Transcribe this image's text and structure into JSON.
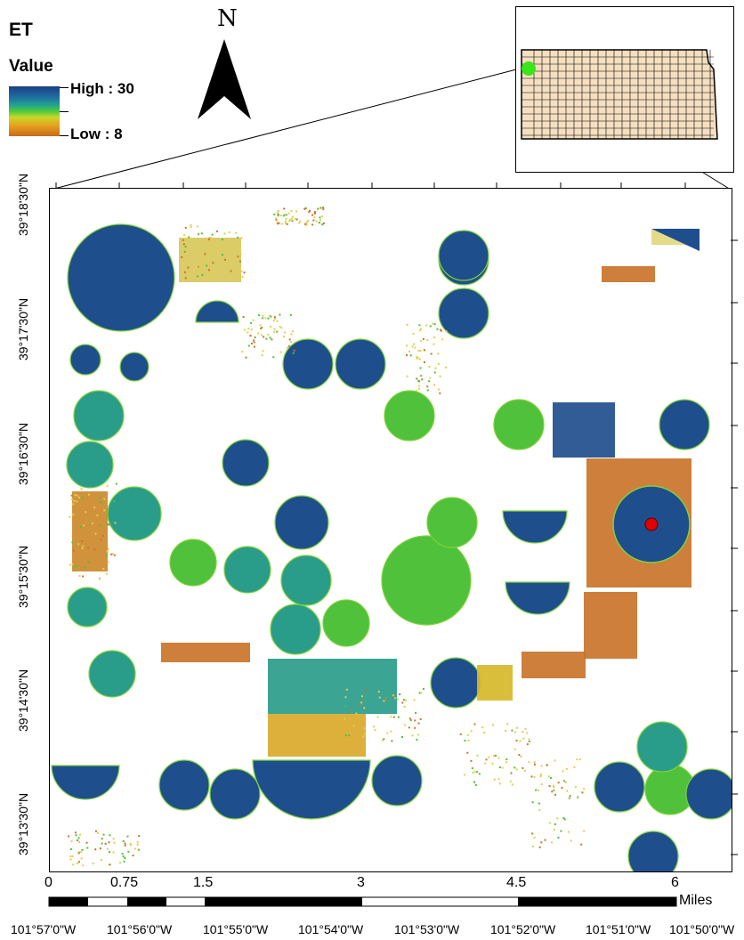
{
  "legend": {
    "title": "ET",
    "subtitle": "Value",
    "high_label": "High : 30",
    "low_label": "Low : 8",
    "high_value": 30,
    "low_value": 8,
    "ramp_colors": [
      "#1b3f86",
      "#1f6f9f",
      "#23a48e",
      "#4ecb3a",
      "#c9d82a",
      "#e6a21f",
      "#c76a1c"
    ]
  },
  "north_arrow": {
    "letter": "N",
    "icon": "north-arrow-icon"
  },
  "inset": {
    "description_colors": {
      "fill": "#f5dfc0",
      "highlight": "#39e619",
      "outline": "#000000"
    }
  },
  "scale_bar": {
    "labels": [
      "0",
      "0.75",
      "1.5",
      "3",
      "4.5",
      "6"
    ],
    "unit": "Miles"
  },
  "latitude_labels": [
    "39°18'30\"N",
    "39°17'30\"N",
    "39°16'30\"N",
    "39°15'30\"N",
    "39°14'30\"N",
    "39°13'30\"N"
  ],
  "longitude_labels": [
    "101°57'0\"W",
    "101°56'0\"W",
    "101°55'0\"W",
    "101°54'0\"W",
    "101°53'0\"W",
    "101°52'0\"W",
    "101°51'0\"W",
    "101°50'0\"W"
  ],
  "colors": {
    "high_et": "#1f4e8c",
    "mid_et": "#2a9c8a",
    "green_et": "#4fc13b",
    "low_et": "#c9742a",
    "point_marker": "#e00000"
  }
}
